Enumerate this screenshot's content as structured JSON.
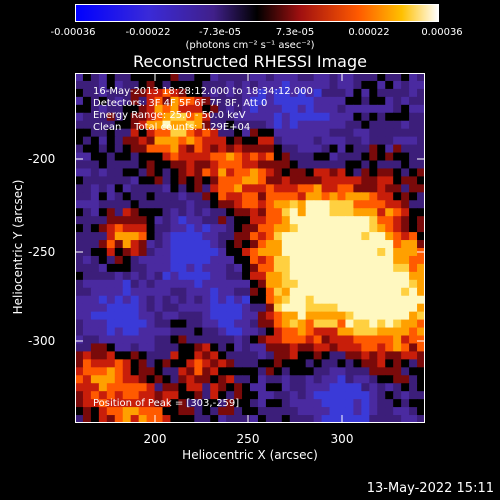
{
  "colorbar": {
    "ticks": [
      "-0.00036",
      "-0.00022",
      "-7.3e-05",
      "7.3e-05",
      "0.00022",
      "0.00036"
    ],
    "units": "(photons cm⁻² s⁻¹ asec⁻²)"
  },
  "title": "Reconstructed RHESSI Image",
  "annotations": {
    "time": "16-May-2013 18:28:12.000 to 18:34:12.000",
    "detectors": "Detectors: 3F 4F 5F 6F 7F 8F, Att 0",
    "energy": "Energy Range: 25.0 - 50.0 keV",
    "clean": "Clean    Total counts: 1.29E+04",
    "peak": "Position of Peak = [303,-259]"
  },
  "axes": {
    "xlabel": "Heliocentric X (arcsec)",
    "ylabel": "Heliocentric Y (arcsec)",
    "xticks": [
      "200",
      "250",
      "300"
    ],
    "yticks": [
      "-200",
      "-250",
      "-300"
    ]
  },
  "footer": {
    "timestamp": "13-May-2022 15:11"
  },
  "colors": {
    "background": "#000000",
    "text": "#ffffff"
  }
}
